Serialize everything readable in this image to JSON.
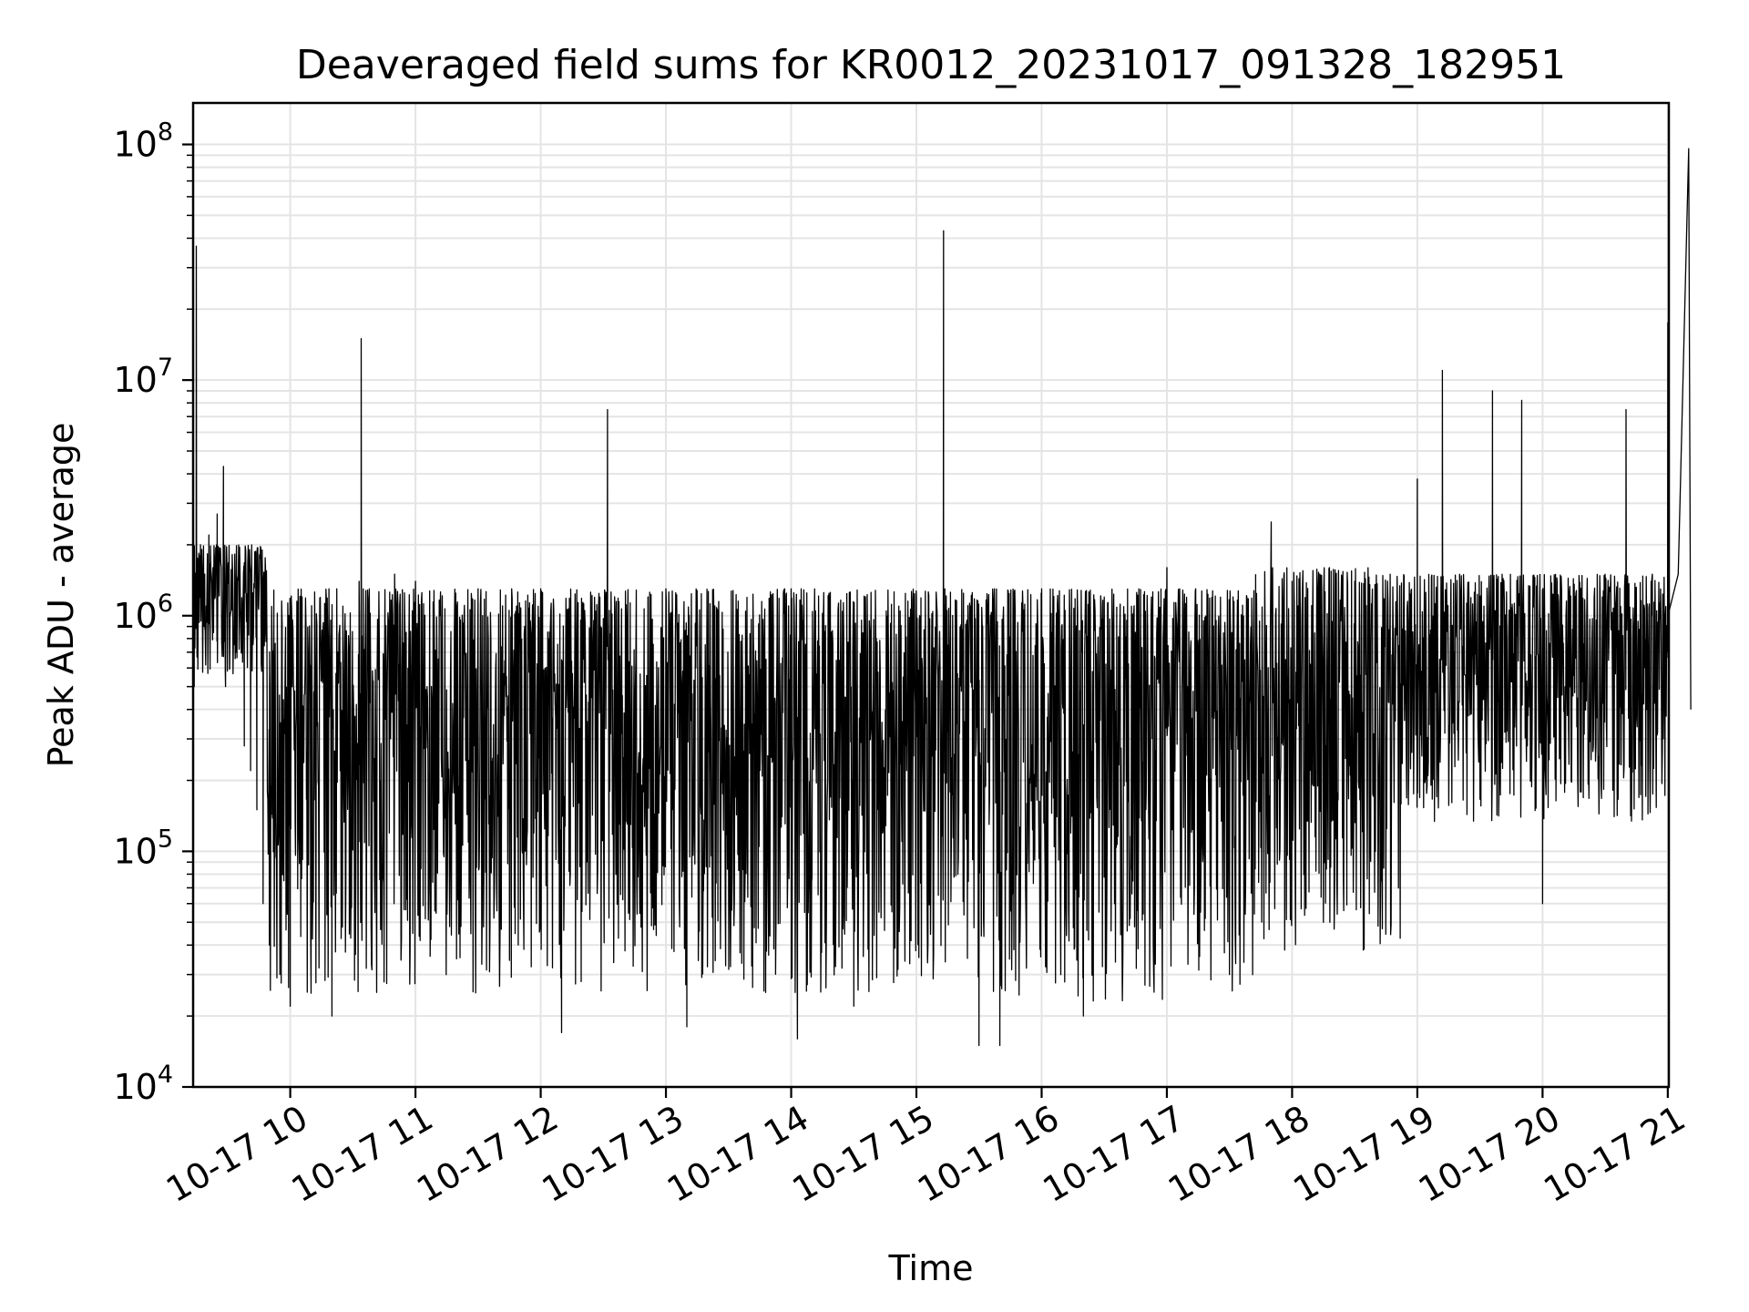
{
  "chart_data": {
    "type": "line",
    "title": "Deaveraged field sums for KR0012_20231017_091328_182951",
    "xlabel": "Time",
    "ylabel": "Peak ADU - average",
    "yscale": "log",
    "ylim": [
      10000,
      150000000
    ],
    "xlim": [
      "2023-10-17 09:13:28",
      "2023-10-17 21:00:30"
    ],
    "grid": true,
    "series_color": "#000000",
    "x_ticks": [
      {
        "t": "2023-10-17 10:00",
        "label": "10-17 10"
      },
      {
        "t": "2023-10-17 11:00",
        "label": "10-17 11"
      },
      {
        "t": "2023-10-17 12:00",
        "label": "10-17 12"
      },
      {
        "t": "2023-10-17 13:00",
        "label": "10-17 13"
      },
      {
        "t": "2023-10-17 14:00",
        "label": "10-17 14"
      },
      {
        "t": "2023-10-17 15:00",
        "label": "10-17 15"
      },
      {
        "t": "2023-10-17 16:00",
        "label": "10-17 16"
      },
      {
        "t": "2023-10-17 17:00",
        "label": "10-17 17"
      },
      {
        "t": "2023-10-17 18:00",
        "label": "10-17 18"
      },
      {
        "t": "2023-10-17 19:00",
        "label": "10-17 19"
      },
      {
        "t": "2023-10-17 20:00",
        "label": "10-17 20"
      },
      {
        "t": "2023-10-17 21:00",
        "label": "10-17 21"
      }
    ],
    "y_ticks": [
      {
        "value": 10000,
        "base": "10",
        "exp": "4"
      },
      {
        "value": 100000,
        "base": "10",
        "exp": "5"
      },
      {
        "value": 1000000,
        "base": "10",
        "exp": "6"
      },
      {
        "value": 10000000,
        "base": "10",
        "exp": "7"
      },
      {
        "value": 100000000,
        "base": "10",
        "exp": "8"
      }
    ],
    "series": [
      {
        "points": [
          [
            "2023-10-17 09:14",
            500000
          ],
          [
            "2023-10-17 09:15",
            37000000
          ],
          [
            "2023-10-17 09:16",
            1000000
          ],
          [
            "2023-10-17 09:17",
            2000000
          ],
          [
            "2023-10-17 09:19",
            1500000
          ],
          [
            "2023-10-17 09:21",
            2200000
          ],
          [
            "2023-10-17 09:23",
            1600000
          ],
          [
            "2023-10-17 09:25",
            2700000
          ],
          [
            "2023-10-17 09:27",
            1400000
          ],
          [
            "2023-10-17 09:28",
            4300000
          ],
          [
            "2023-10-17 09:29",
            500000
          ],
          [
            "2023-10-17 09:31",
            600000
          ],
          [
            "2023-10-17 09:34",
            700000
          ],
          [
            "2023-10-17 09:36",
            1400000
          ],
          [
            "2023-10-17 09:38",
            280000
          ],
          [
            "2023-10-17 09:41",
            220000
          ],
          [
            "2023-10-17 09:44",
            150000
          ],
          [
            "2023-10-17 09:47",
            60000
          ],
          [
            "2023-10-17 09:50",
            40000
          ],
          [
            "2023-10-17 09:55",
            30000
          ],
          [
            "2023-10-17 10:00",
            22000
          ],
          [
            "2023-10-17 10:10",
            25000
          ],
          [
            "2023-10-17 10:20",
            20000
          ],
          [
            "2023-10-17 10:33",
            1400000
          ],
          [
            "2023-10-17 10:34",
            15000000
          ],
          [
            "2023-10-17 10:35",
            1300000
          ],
          [
            "2023-10-17 10:50",
            1500000
          ],
          [
            "2023-10-17 11:00",
            1400000
          ],
          [
            "2023-10-17 11:30",
            1300000
          ],
          [
            "2023-10-17 12:00",
            1300000
          ],
          [
            "2023-10-17 12:10",
            17000
          ],
          [
            "2023-10-17 12:32",
            7500000
          ],
          [
            "2023-10-17 13:00",
            1300000
          ],
          [
            "2023-10-17 13:10",
            18000
          ],
          [
            "2023-10-17 14:00",
            1300000
          ],
          [
            "2023-10-17 14:03",
            16000
          ],
          [
            "2023-10-17 14:30",
            22000
          ],
          [
            "2023-10-17 15:00",
            1200000
          ],
          [
            "2023-10-17 15:13",
            43000000
          ],
          [
            "2023-10-17 15:30",
            15000
          ],
          [
            "2023-10-17 15:40",
            15000
          ],
          [
            "2023-10-17 16:00",
            600000
          ],
          [
            "2023-10-17 16:20",
            20000
          ],
          [
            "2023-10-17 16:30",
            1200000
          ],
          [
            "2023-10-17 17:00",
            1600000
          ],
          [
            "2023-10-17 17:30",
            30000
          ],
          [
            "2023-10-17 17:50",
            2500000
          ],
          [
            "2023-10-17 18:00",
            1400000
          ],
          [
            "2023-10-17 18:15",
            50000
          ],
          [
            "2023-10-17 18:30",
            1400000
          ],
          [
            "2023-10-17 19:00",
            3800000
          ],
          [
            "2023-10-17 19:12",
            11000000
          ],
          [
            "2023-10-17 19:36",
            9000000
          ],
          [
            "2023-10-17 19:50",
            8200000
          ],
          [
            "2023-10-17 20:00",
            60000
          ],
          [
            "2023-10-17 20:30",
            1400000
          ],
          [
            "2023-10-17 20:40",
            7500000
          ],
          [
            "2023-10-17 20:50",
            400000
          ],
          [
            "2023-10-17 21:00",
            17500000
          ],
          [
            "2023-10-17 21:05",
            1500000
          ],
          [
            "2023-10-17 21:10",
            96000000
          ],
          [
            "2023-10-17 21:11",
            400000
          ]
        ]
      }
    ]
  }
}
